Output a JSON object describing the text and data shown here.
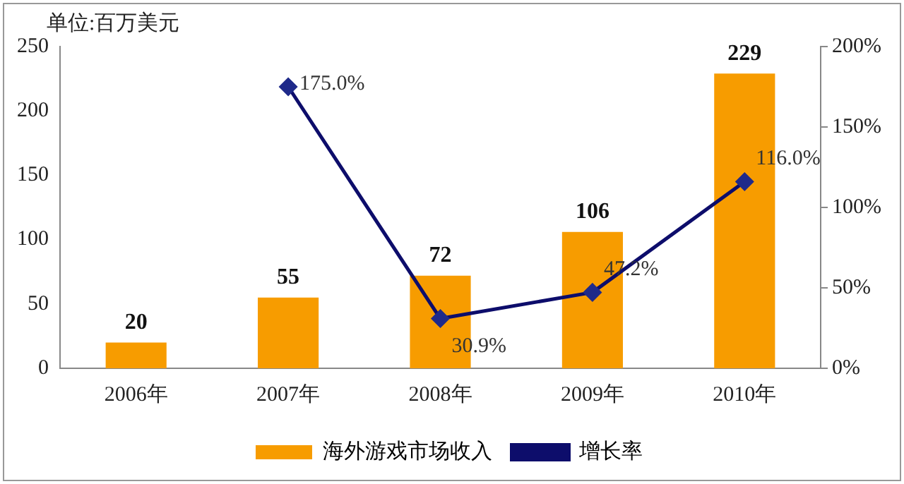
{
  "chart_data": {
    "type": "bar",
    "ylabel": "单位:百万美元",
    "categories": [
      "2006年",
      "2007年",
      "2008年",
      "2009年",
      "2010年"
    ],
    "series": [
      {
        "name": "海外游戏市场收入",
        "color": "#f79c00",
        "values": [
          20,
          55,
          72,
          106,
          229
        ],
        "value_labels": [
          "20",
          "55",
          "72",
          "106",
          "229"
        ]
      },
      {
        "name": "增长率",
        "type": "line",
        "axis": "y2",
        "color": "#0d0d6b",
        "marker": "diamond",
        "values": [
          null,
          175.0,
          30.9,
          47.2,
          116.0
        ],
        "value_labels": [
          null,
          "175.0%",
          "30.9%",
          "47.2%",
          "116.0%"
        ]
      }
    ],
    "ylim": [
      0,
      250
    ],
    "yticks": [
      0,
      50,
      100,
      150,
      200,
      250
    ],
    "y2lim": [
      0,
      200
    ],
    "y2ticks": [
      {
        "value": 0,
        "label": "0%"
      },
      {
        "value": 50,
        "label": "50%"
      },
      {
        "value": 100,
        "label": "100%"
      },
      {
        "value": 150,
        "label": "150%"
      },
      {
        "value": 200,
        "label": "200%"
      }
    ],
    "grid": false,
    "legend": "bottom"
  }
}
